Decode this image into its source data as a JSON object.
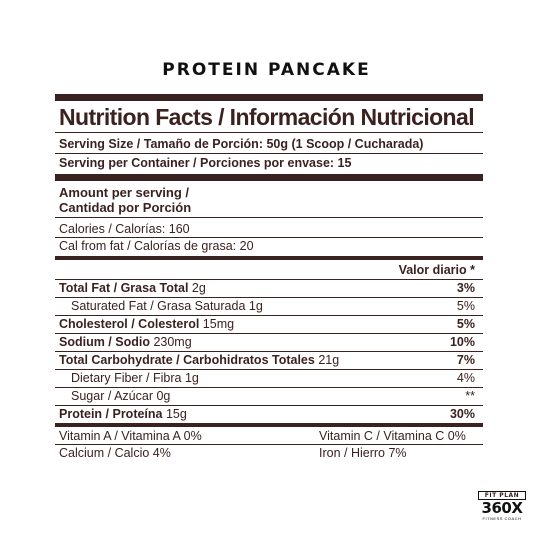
{
  "product": {
    "title": "PROTEIN PANCAKE"
  },
  "label": {
    "heading": "Nutrition Facts / Información Nutricional",
    "serving_size_label": "Serving Size / Tamaño de Porción:",
    "serving_size_value": "50g (1 Scoop / Cucharada)",
    "servings_per_container": "Serving per Container / Porciones por envase: 15",
    "amount_per_serving": "Amount per serving /",
    "amount_per_serving_es": "Cantidad por Porción",
    "calories": "Calories / Calorías: 160",
    "cal_from_fat": "Cal from fat / Calorías de grasa: 20",
    "daily_value_header": "Valor diario *",
    "nutrients": [
      {
        "name": "Total Fat / Grasa Total",
        "amount": "2g",
        "dv": "3%"
      },
      {
        "name": "Saturated Fat / Grasa Saturada",
        "amount": "1g",
        "dv": "5%"
      },
      {
        "name": "Cholesterol / Colesterol",
        "amount": "15mg",
        "dv": "5%"
      },
      {
        "name": "Sodium / Sodio",
        "amount": "230mg",
        "dv": "10%"
      },
      {
        "name": "Total Carbohydrate / Carbohidratos Totales",
        "amount": "21g",
        "dv": "7%"
      },
      {
        "name": "Dietary Fiber / Fibra",
        "amount": "1g",
        "dv": "4%"
      },
      {
        "name": "Sugar / Azúcar",
        "amount": "0g",
        "dv": "**"
      },
      {
        "name": "Protein / Proteína",
        "amount": "15g",
        "dv": "30%"
      }
    ],
    "vitamins": [
      {
        "left": "Vitamin A / Vitamina A 0%",
        "right": "Vitamin C / Vitamina C 0%"
      },
      {
        "left": "Calcium / Calcio 4%",
        "right": "Iron / Hierro 7%"
      }
    ]
  },
  "logo": {
    "top": "FIT PLAN",
    "main": "360X",
    "sub": "FITNESS COACH"
  }
}
